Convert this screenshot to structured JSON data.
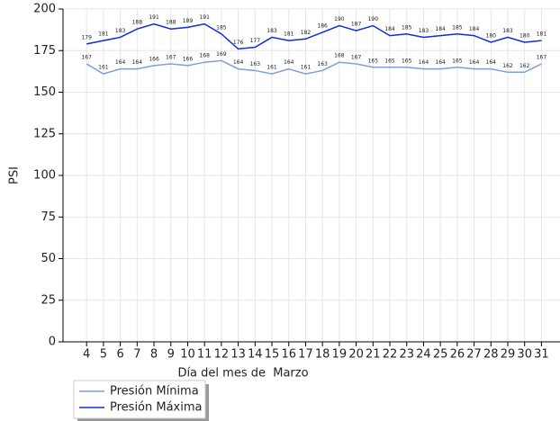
{
  "chart_data": {
    "type": "line",
    "xlabel": "Día del mes de  Marzo",
    "ylabel": "PSI",
    "x": [
      4,
      5,
      6,
      7,
      8,
      9,
      10,
      11,
      12,
      13,
      14,
      15,
      16,
      17,
      18,
      19,
      20,
      21,
      22,
      23,
      24,
      25,
      26,
      27,
      28,
      29,
      30,
      31
    ],
    "series": [
      {
        "name": "Presión Mínima",
        "color": "#7f9fd8",
        "values": [
          167,
          161,
          164,
          164,
          166,
          167,
          166,
          168,
          169,
          164,
          163,
          161,
          164,
          161,
          163,
          168,
          167,
          165,
          165,
          165,
          164,
          164,
          165,
          164,
          164,
          162,
          162,
          167
        ]
      },
      {
        "name": "Presión Máxima",
        "color": "#0a2ed8",
        "values": [
          179,
          181,
          183,
          188,
          191,
          188,
          189,
          191,
          185,
          176,
          177,
          183,
          181,
          182,
          186,
          190,
          187,
          190,
          184,
          185,
          183,
          184,
          185,
          184,
          180,
          183,
          180,
          181
        ]
      }
    ],
    "xlim": [
      2.6,
      32.1
    ],
    "xticks": [
      4,
      5,
      6,
      7,
      8,
      9,
      10,
      11,
      12,
      13,
      14,
      15,
      16,
      17,
      18,
      19,
      20,
      21,
      22,
      23,
      24,
      25,
      26,
      27,
      28,
      29,
      30,
      31
    ],
    "ylim": [
      0,
      200
    ],
    "yticks": [
      0,
      25,
      50,
      75,
      100,
      125,
      150,
      175,
      200
    ],
    "grid": true,
    "legend": "below-left"
  }
}
